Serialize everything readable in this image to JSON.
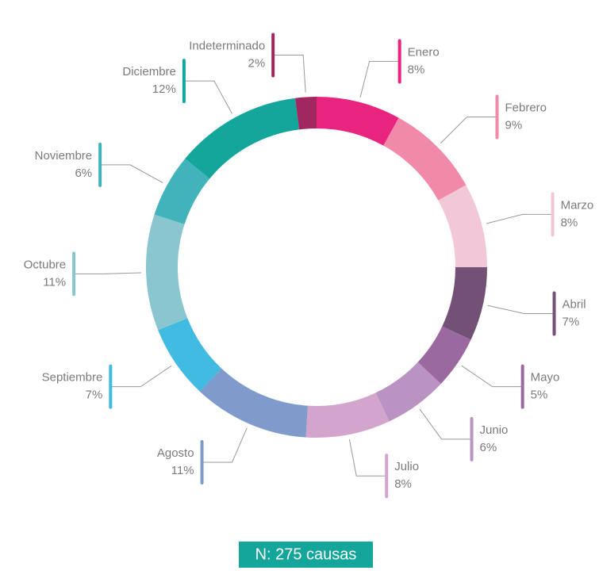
{
  "chart_data": {
    "type": "donut",
    "categories": [
      "Enero",
      "Febrero",
      "Marzo",
      "Abril",
      "Mayo",
      "Junio",
      "Julio",
      "Agosto",
      "Septiembre",
      "Octubre",
      "Noviembre",
      "Diciembre",
      "Indeterminado"
    ],
    "values": [
      8,
      9,
      8,
      7,
      5,
      6,
      8,
      11,
      7,
      11,
      6,
      12,
      2
    ],
    "value_labels": [
      "8%",
      "9%",
      "8%",
      "7%",
      "5%",
      "6%",
      "8%",
      "11%",
      "7%",
      "11%",
      "6%",
      "12%",
      "2%"
    ],
    "colors": [
      "#e8247f",
      "#f08aa8",
      "#f2c8d8",
      "#735177",
      "#9a699f",
      "#bb93c3",
      "#d4a5cc",
      "#7f9bcc",
      "#41bbe1",
      "#89c6d0",
      "#41b4bb",
      "#15a69b",
      "#a0275f"
    ],
    "annotation": "N: 275 causas"
  }
}
